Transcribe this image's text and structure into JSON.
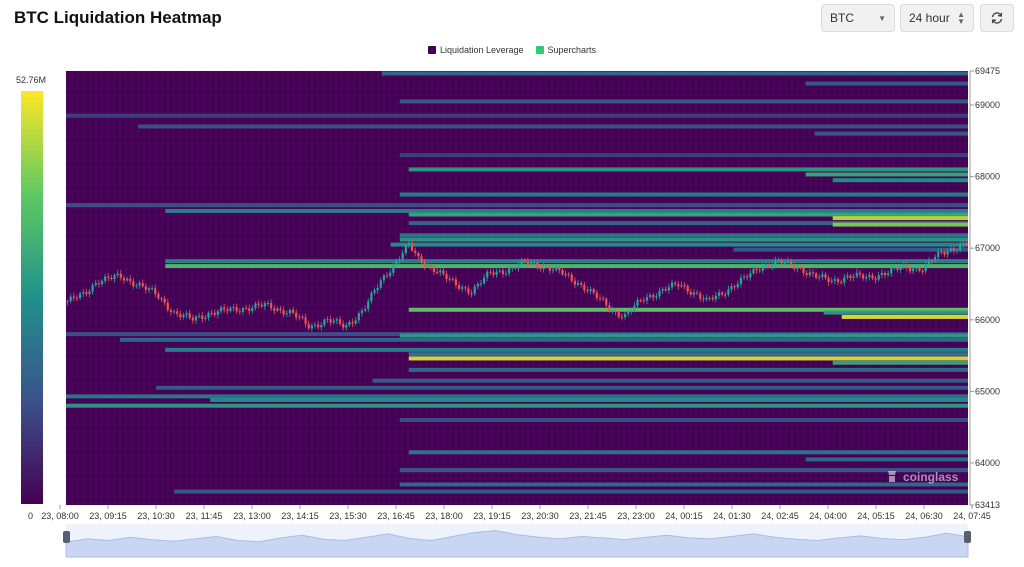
{
  "header": {
    "title": "BTC Liquidation Heatmap",
    "symbol_select": "BTC",
    "range_select": "24 hour",
    "refresh_icon": "refresh-icon"
  },
  "watermark": {
    "text": "coinglass",
    "icon": "coinglass-logo-icon"
  },
  "colors": {
    "background": "#440154",
    "low": "#3b528b",
    "mid": "#21918c",
    "high": "#5ec962",
    "max": "#fde725",
    "candle_up": "#26a69a",
    "candle_down": "#ef5350",
    "navigator_fill": "#c9d6f2"
  },
  "chart_data": {
    "type": "heatmap",
    "legend": [
      {
        "label": "Liquidation Leverage",
        "color": "#440154"
      },
      {
        "label": "Supercharts",
        "color": "#2ecc71"
      }
    ],
    "colorbar": {
      "max_label": "52.76M",
      "min_label": "0"
    },
    "y_axis": {
      "min": 63413,
      "max": 69475,
      "ticks": [
        69475,
        69000,
        68000,
        67000,
        66000,
        65000,
        64000,
        63413
      ]
    },
    "x_axis": {
      "tick_labels": [
        "23, 08:00",
        "23, 09:15",
        "23, 10:30",
        "23, 11:45",
        "23, 13:00",
        "23, 14:15",
        "23, 15:30",
        "23, 16:45",
        "23, 18:00",
        "23, 19:15",
        "23, 20:30",
        "23, 21:45",
        "23, 23:00",
        "24, 00:15",
        "24, 01:30",
        "24, 02:45",
        "24, 04:00",
        "24, 05:15",
        "24, 06:30",
        "24, 07:45"
      ]
    },
    "liquidation_bands": [
      {
        "price": 69440,
        "start": 0.35,
        "intensity": 0.35
      },
      {
        "price": 69300,
        "start": 0.82,
        "intensity": 0.3
      },
      {
        "price": 69050,
        "start": 0.37,
        "intensity": 0.3
      },
      {
        "price": 68850,
        "start": 0.0,
        "intensity": 0.2
      },
      {
        "price": 68700,
        "start": 0.08,
        "intensity": 0.25
      },
      {
        "price": 68600,
        "start": 0.83,
        "intensity": 0.3
      },
      {
        "price": 68300,
        "start": 0.37,
        "intensity": 0.2
      },
      {
        "price": 68100,
        "start": 0.38,
        "intensity": 0.55
      },
      {
        "price": 68030,
        "start": 0.82,
        "intensity": 0.6
      },
      {
        "price": 67950,
        "start": 0.85,
        "intensity": 0.5
      },
      {
        "price": 67750,
        "start": 0.37,
        "intensity": 0.45
      },
      {
        "price": 67600,
        "start": 0.0,
        "intensity": 0.25
      },
      {
        "price": 67520,
        "start": 0.11,
        "intensity": 0.45
      },
      {
        "price": 67470,
        "start": 0.38,
        "intensity": 0.6
      },
      {
        "price": 67420,
        "start": 0.85,
        "intensity": 0.9
      },
      {
        "price": 67350,
        "start": 0.38,
        "intensity": 0.35
      },
      {
        "price": 67330,
        "start": 0.85,
        "intensity": 0.8
      },
      {
        "price": 67180,
        "start": 0.37,
        "intensity": 0.4
      },
      {
        "price": 67120,
        "start": 0.37,
        "intensity": 0.55
      },
      {
        "price": 67050,
        "start": 0.36,
        "intensity": 0.5
      },
      {
        "price": 66980,
        "start": 0.74,
        "intensity": 0.3
      },
      {
        "price": 66820,
        "start": 0.11,
        "intensity": 0.45
      },
      {
        "price": 66750,
        "start": 0.11,
        "intensity": 0.7
      },
      {
        "price": 66140,
        "start": 0.38,
        "intensity": 0.75
      },
      {
        "price": 66100,
        "start": 0.84,
        "intensity": 0.55
      },
      {
        "price": 66040,
        "start": 0.86,
        "intensity": 0.95
      },
      {
        "price": 65800,
        "start": 0.0,
        "intensity": 0.25
      },
      {
        "price": 65780,
        "start": 0.37,
        "intensity": 0.55
      },
      {
        "price": 65720,
        "start": 0.06,
        "intensity": 0.35
      },
      {
        "price": 65580,
        "start": 0.11,
        "intensity": 0.45
      },
      {
        "price": 65520,
        "start": 0.38,
        "intensity": 0.4
      },
      {
        "price": 65460,
        "start": 0.38,
        "intensity": 0.95
      },
      {
        "price": 65400,
        "start": 0.85,
        "intensity": 0.6
      },
      {
        "price": 65300,
        "start": 0.38,
        "intensity": 0.35
      },
      {
        "price": 65150,
        "start": 0.34,
        "intensity": 0.3
      },
      {
        "price": 65050,
        "start": 0.1,
        "intensity": 0.3
      },
      {
        "price": 64930,
        "start": 0.0,
        "intensity": 0.4
      },
      {
        "price": 64880,
        "start": 0.16,
        "intensity": 0.5
      },
      {
        "price": 64800,
        "start": 0.0,
        "intensity": 0.55
      },
      {
        "price": 64600,
        "start": 0.37,
        "intensity": 0.25
      },
      {
        "price": 64150,
        "start": 0.38,
        "intensity": 0.4
      },
      {
        "price": 64050,
        "start": 0.82,
        "intensity": 0.35
      },
      {
        "price": 63900,
        "start": 0.37,
        "intensity": 0.3
      },
      {
        "price": 63700,
        "start": 0.37,
        "intensity": 0.35
      },
      {
        "price": 63600,
        "start": 0.12,
        "intensity": 0.3
      }
    ],
    "price_path": [
      [
        0.0,
        66250
      ],
      [
        0.02,
        66350
      ],
      [
        0.035,
        66550
      ],
      [
        0.06,
        66600
      ],
      [
        0.08,
        66500
      ],
      [
        0.1,
        66350
      ],
      [
        0.12,
        66100
      ],
      [
        0.14,
        66000
      ],
      [
        0.16,
        66100
      ],
      [
        0.19,
        66150
      ],
      [
        0.22,
        66200
      ],
      [
        0.25,
        66100
      ],
      [
        0.27,
        65900
      ],
      [
        0.29,
        66000
      ],
      [
        0.31,
        65900
      ],
      [
        0.33,
        66150
      ],
      [
        0.35,
        66550
      ],
      [
        0.365,
        66800
      ],
      [
        0.38,
        67050
      ],
      [
        0.39,
        66850
      ],
      [
        0.41,
        66700
      ],
      [
        0.43,
        66500
      ],
      [
        0.45,
        66400
      ],
      [
        0.47,
        66650
      ],
      [
        0.49,
        66700
      ],
      [
        0.51,
        66800
      ],
      [
        0.53,
        66750
      ],
      [
        0.55,
        66650
      ],
      [
        0.57,
        66500
      ],
      [
        0.59,
        66300
      ],
      [
        0.61,
        66100
      ],
      [
        0.62,
        66050
      ],
      [
        0.64,
        66300
      ],
      [
        0.66,
        66400
      ],
      [
        0.68,
        66500
      ],
      [
        0.7,
        66350
      ],
      [
        0.71,
        66250
      ],
      [
        0.73,
        66400
      ],
      [
        0.75,
        66550
      ],
      [
        0.77,
        66750
      ],
      [
        0.79,
        66800
      ],
      [
        0.81,
        66750
      ],
      [
        0.83,
        66600
      ],
      [
        0.85,
        66550
      ],
      [
        0.87,
        66600
      ],
      [
        0.89,
        66600
      ],
      [
        0.91,
        66650
      ],
      [
        0.93,
        66750
      ],
      [
        0.95,
        66700
      ],
      [
        0.97,
        66950
      ],
      [
        1.0,
        67050
      ]
    ],
    "volume_profile": [
      0.45,
      0.55,
      0.5,
      0.6,
      0.52,
      0.48,
      0.55,
      0.62,
      0.5,
      0.46,
      0.58,
      0.66,
      0.54,
      0.5,
      0.6,
      0.7,
      0.56,
      0.5,
      0.62,
      0.74,
      0.8,
      0.68,
      0.6,
      0.55,
      0.62,
      0.58,
      0.52,
      0.6,
      0.66,
      0.58,
      0.55,
      0.62,
      0.7,
      0.6,
      0.54,
      0.5,
      0.58,
      0.64,
      0.56,
      0.52,
      0.6,
      0.72,
      0.62
    ]
  }
}
